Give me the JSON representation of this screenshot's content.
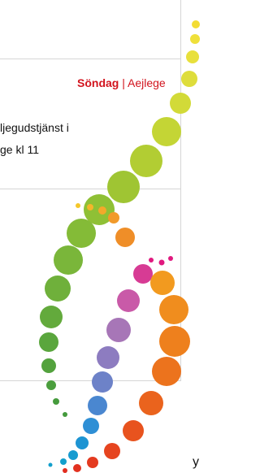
{
  "header": {
    "day": "Söndag",
    "place": "| Aejlege"
  },
  "event": {
    "line1": "ljegudstjänst i",
    "line2": "ge kl 11"
  },
  "footer": {
    "fragment": "y"
  }
}
